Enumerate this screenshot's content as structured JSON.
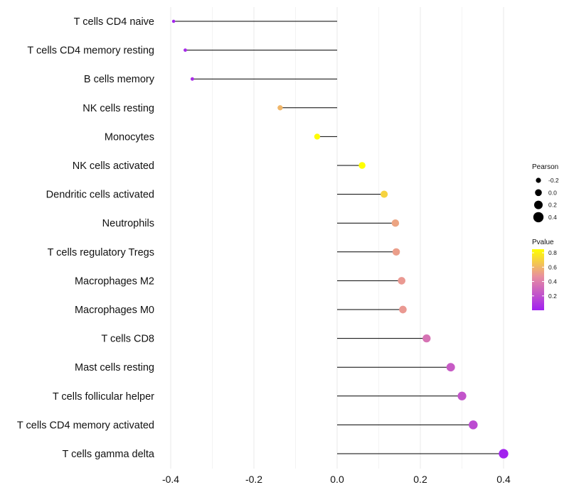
{
  "chart_data": {
    "type": "lollipop",
    "title": "",
    "xlabel": "",
    "ylabel": "",
    "xlim": [
      -0.43,
      0.43
    ],
    "x_ticks": [
      -0.4,
      -0.2,
      0.0,
      0.2,
      0.4
    ],
    "x_tick_labels": [
      "-0.4",
      "-0.2",
      "0.0",
      "0.2",
      "0.4"
    ],
    "grid": "vertical",
    "categories": [
      "T cells CD4 naive",
      "T cells CD4 memory resting",
      "B cells memory",
      "NK cells resting",
      "Monocytes",
      "NK cells activated",
      "Dendritic cells activated",
      "Neutrophils",
      "T cells regulatory  Tregs ",
      "Macrophages M2",
      "Macrophages M0",
      "T cells CD8",
      "Mast cells resting",
      "T cells follicular helper",
      "T cells CD4 memory activated",
      "T cells gamma delta"
    ],
    "pearson": [
      -0.393,
      -0.365,
      -0.348,
      -0.137,
      -0.048,
      0.06,
      0.113,
      0.14,
      0.142,
      0.155,
      0.158,
      0.215,
      0.273,
      0.3,
      0.327,
      0.4
    ],
    "pvalue": [
      0.02,
      0.04,
      0.06,
      0.6,
      0.84,
      0.86,
      0.7,
      0.54,
      0.52,
      0.5,
      0.5,
      0.35,
      0.25,
      0.22,
      0.18,
      0.01
    ],
    "legend_size": {
      "title": "Pearson",
      "values": [
        -0.2,
        0.0,
        0.2,
        0.4
      ],
      "labels": [
        "-0.2",
        "0.0",
        "0.2",
        "0.4"
      ]
    },
    "legend_color": {
      "title": "Pvalue",
      "values": [
        0.2,
        0.4,
        0.6,
        0.8
      ],
      "labels": [
        "0.2",
        "0.4",
        "0.6",
        "0.8"
      ],
      "range": [
        0.0,
        0.85
      ],
      "low_color": "#a020f0",
      "mid_color": "#e88fa0",
      "high_color": "#ffff00"
    },
    "colors": {
      "segment": "#000000",
      "grid": "#ebebeb"
    }
  }
}
